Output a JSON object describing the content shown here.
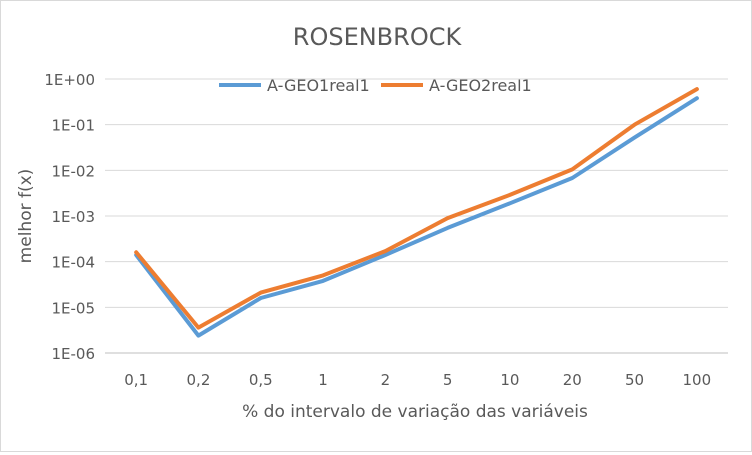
{
  "chart_data": {
    "type": "line",
    "title": "ROSENBROCK",
    "xlabel": "% do intervalo de variação das variáveis",
    "ylabel": "melhor f(x)",
    "y_scale": "log",
    "ylim": [
      1e-06,
      1
    ],
    "y_tick_labels": [
      "1E+00",
      "1E-01",
      "1E-02",
      "1E-03",
      "1E-04",
      "1E-05",
      "1E-06"
    ],
    "y_tick_values": [
      1,
      0.1,
      0.01,
      0.001,
      0.0001,
      1e-05,
      1e-06
    ],
    "grid": true,
    "legend_position": "top",
    "categories": [
      "0,1",
      "0,2",
      "0,5",
      "1",
      "2",
      "5",
      "10",
      "20",
      "50",
      "100"
    ],
    "series": [
      {
        "name": "A-GEO1real1",
        "color": "#5b9bd5",
        "values": [
          0.00014,
          2.4e-06,
          1.6e-05,
          3.8e-05,
          0.00014,
          0.00055,
          0.0019,
          0.0068,
          0.052,
          0.38
        ]
      },
      {
        "name": "A-GEO2real1",
        "color": "#ed7d31",
        "values": [
          0.00016,
          3.6e-06,
          2.1e-05,
          5e-05,
          0.00017,
          0.0009,
          0.0029,
          0.0105,
          0.1,
          0.6
        ]
      }
    ]
  }
}
